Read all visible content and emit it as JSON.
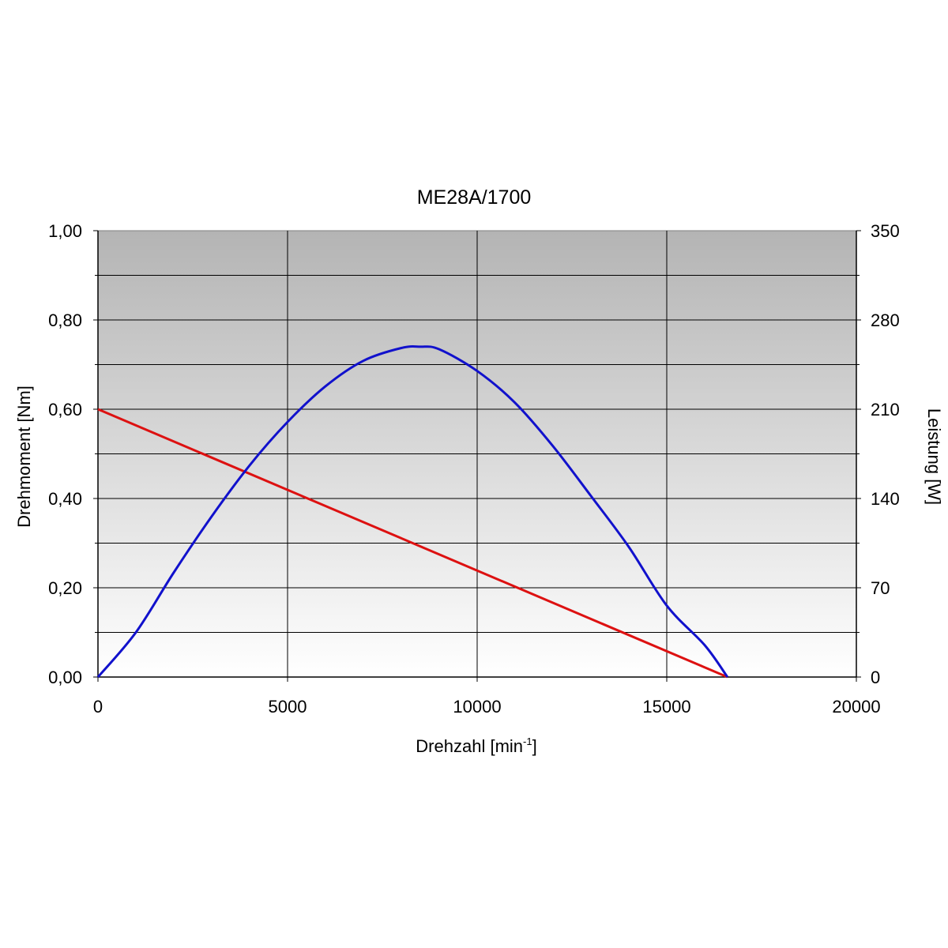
{
  "chart_data": {
    "type": "line",
    "title": "ME28A/1700",
    "xlabel": "Drehzahl [min",
    "xlabel_sup": "-1",
    "xlabel_end": "]",
    "ylabel_left": "Drehmoment [Nm]",
    "ylabel_right": "Leistung [W]",
    "xlim": [
      0,
      20000
    ],
    "ylim_left": [
      0,
      1.0
    ],
    "ylim_right": [
      0,
      350
    ],
    "x_ticks": [
      "0",
      "5000",
      "10000",
      "15000",
      "20000"
    ],
    "y_ticks_left": [
      "0,00",
      "0,20",
      "0,40",
      "0,60",
      "0,80",
      "1,00"
    ],
    "y_ticks_right": [
      "0",
      "70",
      "140",
      "210",
      "280",
      "350"
    ],
    "grid": true,
    "plot_background": "gradient gray (#b4b4b4) to white",
    "series": [
      {
        "axis": "left",
        "color": "#dd1111",
        "x": [
          0,
          16600
        ],
        "y": [
          0.6,
          0.0
        ]
      },
      {
        "axis": "right",
        "color": "#1111cc",
        "x": [
          0,
          1000,
          2000,
          3000,
          4000,
          5000,
          6000,
          7000,
          8000,
          8500,
          9000,
          10000,
          11000,
          12000,
          13000,
          14000,
          15000,
          16000,
          16600
        ],
        "y": [
          0,
          35,
          82,
          126,
          166,
          200,
          228,
          248,
          258,
          259,
          257,
          240,
          215,
          181,
          142,
          102,
          56,
          25,
          0
        ]
      }
    ]
  }
}
